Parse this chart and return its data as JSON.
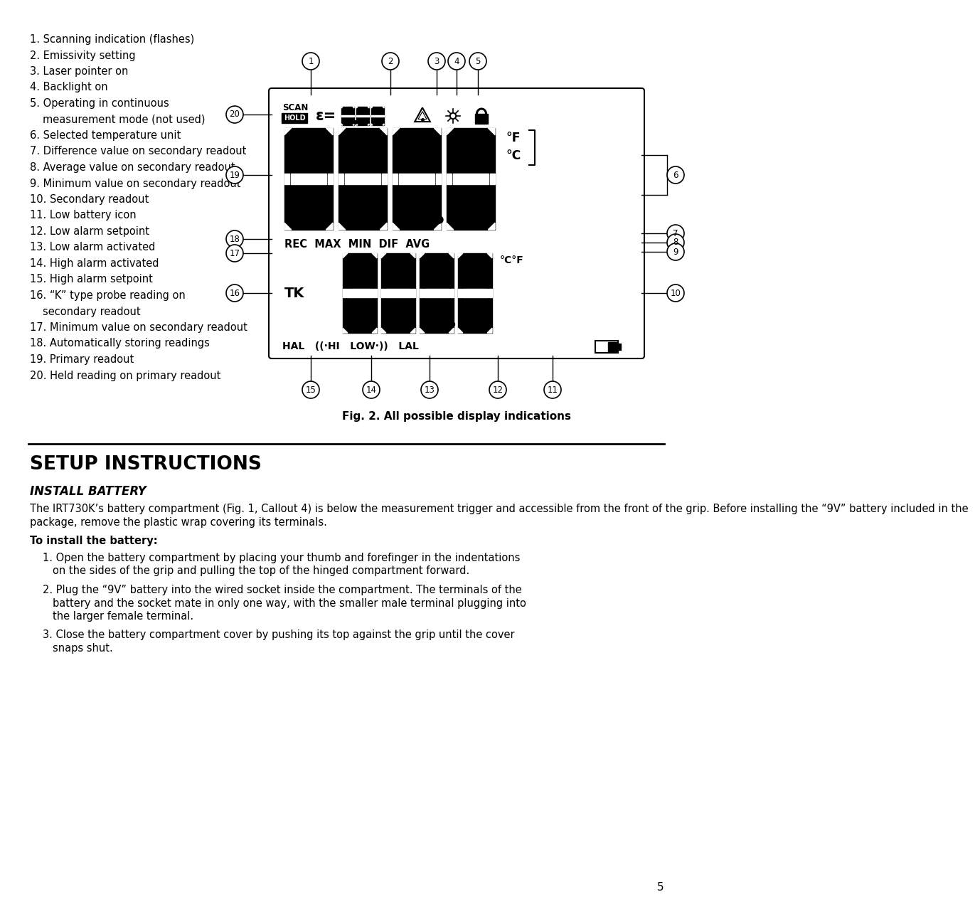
{
  "bg_color": "#ffffff",
  "page_number": "5",
  "fig_caption": "Fig. 2. All possible display indications",
  "section_title": "SETUP INSTRUCTIONS",
  "subsection_title": "INSTALL BATTERY",
  "body_text1": "The IRT730K’s battery compartment (Fig. 1, Callout 4) is below the measurement trigger and accessible from the front of the grip. Before installing the “9V” battery included in the\npackage, remove the plastic wrap covering its terminals.",
  "bold_label": "To install the battery:",
  "install_steps": [
    [
      "1. Open the battery compartment by placing your thumb and forefinger in the indentations",
      "on the sides of the grip and pulling the top of the hinged compartment forward."
    ],
    [
      "2. Plug the “9V” battery into the wired socket inside the compartment. The terminals of the",
      "battery and the socket mate in only one way, with the smaller male terminal plugging into",
      "the larger female terminal."
    ],
    [
      "3. Close the battery compartment cover by pushing its top against the grip until the cover",
      "snaps shut."
    ]
  ],
  "left_items": [
    "1. Scanning indication (flashes)",
    "2. Emissivity setting",
    "3. Laser pointer on",
    "4. Backlight on",
    "5. Operating in continuous",
    "   measurement mode (not used)",
    "6. Selected temperature unit",
    "7. Difference value on secondary readout",
    "8. Average value on secondary readout",
    "9. Minimum value on secondary readout",
    "10. Secondary readout",
    "11. Low battery icon",
    "12. Low alarm setpoint",
    "13. Low alarm activated",
    "14. High alarm activated",
    "15. High alarm setpoint",
    "16. “K” type probe reading on",
    "    secondary readout",
    "17. Minimum value on secondary readout",
    "18. Automatically storing readings",
    "19. Primary readout",
    "20. Held reading on primary readout"
  ]
}
